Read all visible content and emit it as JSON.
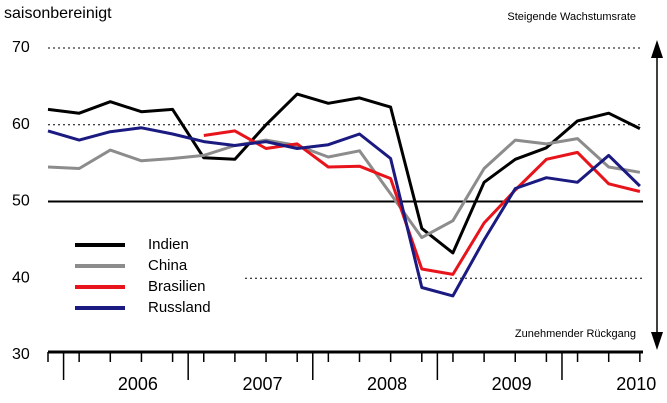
{
  "chart_data": {
    "type": "line",
    "title": "saisonbereinigt",
    "annotations": [
      "Steigende Wachstumsrate",
      "Zunehmender Rückgang"
    ],
    "categories": [
      null,
      null,
      null,
      null,
      null,
      null,
      null,
      null,
      null,
      null,
      null,
      null,
      null,
      null,
      null,
      null,
      null,
      null,
      null,
      null
    ],
    "year_labels": [
      "2006",
      "2007",
      "2008",
      "2009",
      "2010"
    ],
    "ylim": [
      30,
      70
    ],
    "yticks": [
      30,
      40,
      50,
      60,
      70
    ],
    "reference_line": 50,
    "series": [
      {
        "name": "Indien",
        "color": "#000000",
        "values": [
          62,
          61.5,
          63,
          61.7,
          62,
          55.7,
          55.5,
          60,
          64,
          62.8,
          63.5,
          62.3,
          46.5,
          43.3,
          52.5,
          55.5,
          57,
          60.5,
          61.5,
          59.5
        ]
      },
      {
        "name": "China",
        "color": "#8c8c8c",
        "values": [
          54.5,
          54.3,
          56.7,
          55.3,
          55.6,
          56,
          57.3,
          58,
          57.3,
          55.8,
          56.6,
          51,
          45.3,
          47.5,
          54.3,
          58,
          57.5,
          58.2,
          54.5,
          53.8
        ]
      },
      {
        "name": "Brasilien",
        "color": "#e8141b",
        "values": [
          null,
          null,
          null,
          null,
          null,
          58.6,
          59.2,
          56.9,
          57.5,
          54.5,
          54.6,
          53,
          41.2,
          40.5,
          47.2,
          51.5,
          55.5,
          56.4,
          52.3,
          51.3
        ]
      },
      {
        "name": "Russland",
        "color": "#1a1a80",
        "values": [
          59.2,
          58,
          59.1,
          59.6,
          58.8,
          57.8,
          57.3,
          57.8,
          56.9,
          57.4,
          58.8,
          55.6,
          38.8,
          37.7,
          45,
          51.7,
          53.1,
          52.5,
          56,
          52
        ]
      }
    ]
  }
}
